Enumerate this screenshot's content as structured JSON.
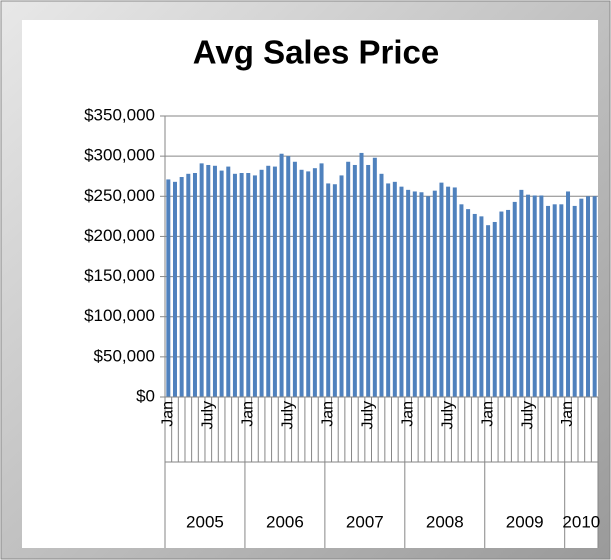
{
  "chart_data": {
    "type": "bar",
    "title": "Avg Sales Price",
    "categories": [
      "Jan",
      null,
      null,
      null,
      null,
      null,
      "July",
      null,
      null,
      null,
      null,
      null,
      "Jan",
      null,
      null,
      null,
      null,
      null,
      "July",
      null,
      null,
      null,
      null,
      null,
      "Jan",
      null,
      null,
      null,
      null,
      null,
      "July",
      null,
      null,
      null,
      null,
      null,
      "Jan",
      null,
      null,
      null,
      null,
      null,
      "July",
      null,
      null,
      null,
      null,
      null,
      "Jan",
      null,
      null,
      null,
      null,
      null,
      "July",
      null,
      null,
      null,
      null,
      null,
      "Jan",
      null,
      null,
      null,
      null
    ],
    "years": [
      "2005",
      "2006",
      "2007",
      "2008",
      "2009",
      "2010"
    ],
    "values": [
      271000,
      268000,
      274000,
      278000,
      279000,
      291000,
      289000,
      288000,
      282000,
      287000,
      278000,
      279000,
      279000,
      276000,
      283000,
      288000,
      287000,
      303000,
      300000,
      293000,
      283000,
      281000,
      285000,
      291000,
      266000,
      265000,
      276000,
      293000,
      289000,
      304000,
      289000,
      298000,
      278000,
      266000,
      268000,
      262000,
      258000,
      256000,
      255000,
      250000,
      257000,
      267000,
      262000,
      261000,
      240000,
      234000,
      228000,
      225000,
      214000,
      218000,
      231000,
      233000,
      243000,
      258000,
      252000,
      251000,
      251000,
      238000,
      240000,
      240000,
      256000,
      238000,
      247000,
      250000,
      250000
    ],
    "color": "#4f81bd",
    "ylim": [
      0,
      350000
    ],
    "yticks": [
      {
        "value": 0,
        "label": "$0"
      },
      {
        "value": 50000,
        "label": "$50,000"
      },
      {
        "value": 100000,
        "label": "$100,000"
      },
      {
        "value": 150000,
        "label": "$150,000"
      },
      {
        "value": 200000,
        "label": "$200,000"
      },
      {
        "value": 250000,
        "label": "$250,000"
      },
      {
        "value": 300000,
        "label": "$300,000"
      },
      {
        "value": 350000,
        "label": "$350,000"
      }
    ],
    "grid": true
  }
}
